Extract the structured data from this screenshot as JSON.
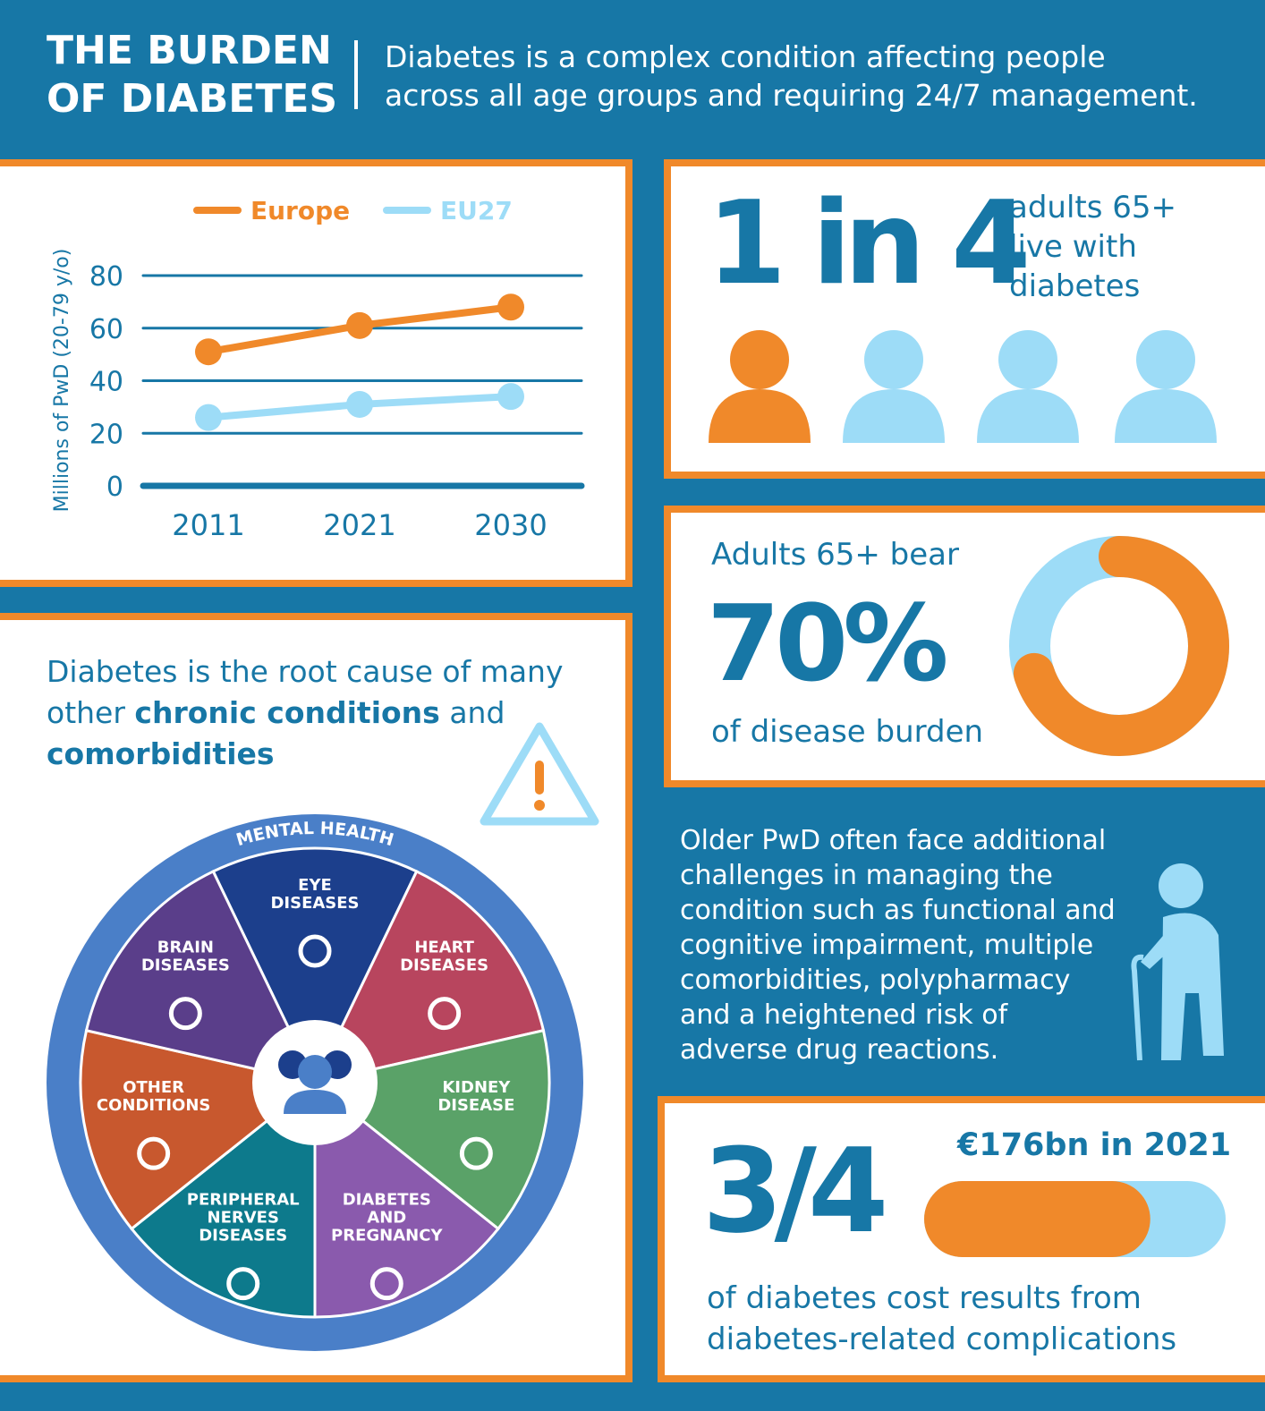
{
  "header": {
    "title": [
      "THE BURDEN",
      "OF DIABETES"
    ],
    "subtitle": [
      "Diabetes is a complex condition affecting people",
      "across all age groups and requiring 24/7 management."
    ]
  },
  "chart_data": {
    "type": "line",
    "y_label": "Millions of PwD (20-79 y/o)",
    "categories": [
      "2011",
      "2021",
      "2030"
    ],
    "series": [
      {
        "name": "Europe",
        "color": "#f0892a",
        "values": [
          51,
          61,
          68
        ]
      },
      {
        "name": "EU27",
        "color": "#9ddcf7",
        "values": [
          26,
          31,
          34
        ]
      }
    ],
    "ylim": [
      0,
      80
    ],
    "yticks": [
      0,
      20,
      40,
      60,
      80
    ],
    "grid": true,
    "legend": "top"
  },
  "older_adults": {
    "headline": "1 in 4",
    "text": [
      "adults 65+",
      "live with",
      "diabetes"
    ]
  },
  "burden": {
    "intro": "Adults 65+ bear",
    "share": {
      "value": 70,
      "label": "70%"
    },
    "text": "of disease burden"
  },
  "challenges": {
    "lines": [
      "Older PwD often face additional",
      "challenges in managing the",
      "condition such as functional and",
      "cognitive impairment, multiple",
      "comorbidities, polypharmacy",
      "and a heightened risk of",
      "adverse drug reactions."
    ]
  },
  "cost": {
    "share": {
      "value": 0.75,
      "label": "3/4"
    },
    "amount": "€176bn in 2021",
    "text": [
      "of diabetes cost results from",
      "diabetes-related complications"
    ]
  },
  "comorbidities": {
    "intro": [
      {
        "text": "Diabetes is the root cause of many other ",
        "bold": false
      },
      {
        "text": "chronic conditions",
        "bold": true
      },
      {
        "text": " and ",
        "bold": false
      },
      {
        "text": "comorbidities",
        "bold": true
      }
    ],
    "wheel": {
      "ring": "MENTAL HEALTH",
      "segments": [
        {
          "label": [
            "EYE",
            "DISEASES"
          ],
          "color": "#1c3f8c"
        },
        {
          "label": [
            "HEART",
            "DISEASES"
          ],
          "color": "#b8455e"
        },
        {
          "label": [
            "KIDNEY",
            "DISEASE"
          ],
          "color": "#5aa268"
        },
        {
          "label": [
            "DIABETES",
            "AND",
            "PREGNANCY"
          ],
          "color": "#8a5aad"
        },
        {
          "label": [
            "PERIPHERAL",
            "NERVES",
            "DISEASES"
          ],
          "color": "#0d7a8c"
        },
        {
          "label": [
            "OTHER",
            "CONDITIONS"
          ],
          "color": "#c8582e"
        },
        {
          "label": [
            "BRAIN",
            "DISEASES"
          ],
          "color": "#5a3e8a"
        }
      ]
    }
  }
}
